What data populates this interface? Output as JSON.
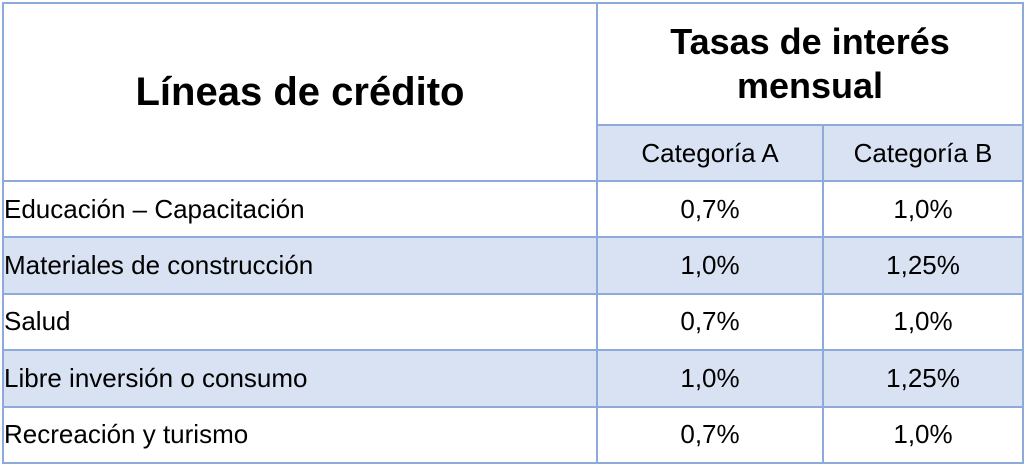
{
  "table": {
    "header_lines": "Líneas de crédito",
    "header_rates": "Tasas de interés mensual",
    "header_cat_a": "Categoría A",
    "header_cat_b": "Categoría B",
    "rows": [
      {
        "line": "Educación – Capacitación",
        "rate_a": "0,7%",
        "rate_b": "1,0%"
      },
      {
        "line": "Materiales de construcción",
        "rate_a": "1,0%",
        "rate_b": "1,25%"
      },
      {
        "line": "Salud",
        "rate_a": "0,7%",
        "rate_b": "1,0%"
      },
      {
        "line": "Libre inversión o consumo",
        "rate_a": "1,0%",
        "rate_b": "1,25%"
      },
      {
        "line": "Recreación y turismo",
        "rate_a": "0,7%",
        "rate_b": "1,0%"
      }
    ]
  },
  "colors": {
    "border": "#8eaadb",
    "header_rule": "#4472c4",
    "band_fill": "#d9e2f3"
  }
}
